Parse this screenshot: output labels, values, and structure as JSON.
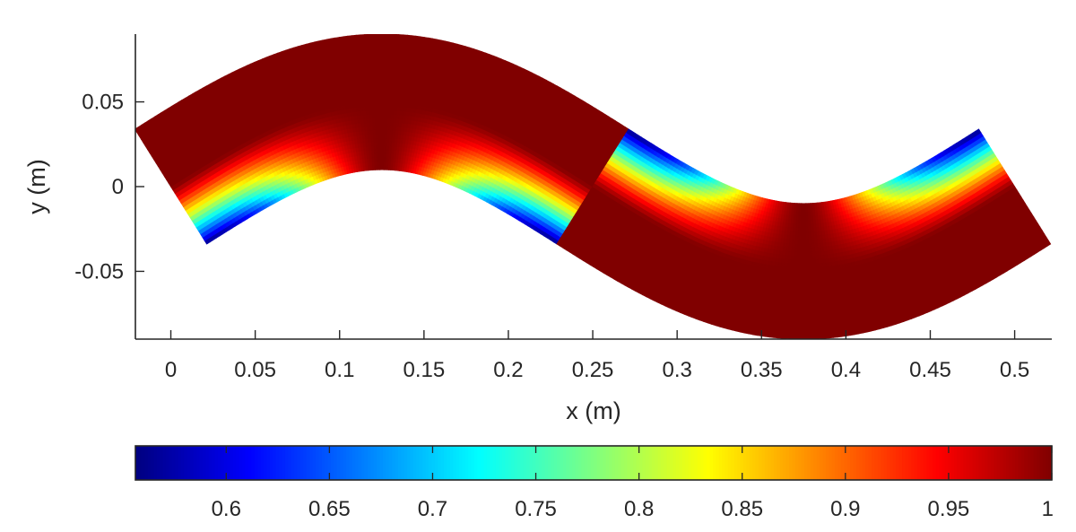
{
  "chart_data": {
    "type": "heatmap",
    "title": "",
    "xlabel": "x (m)",
    "ylabel": "y (m)",
    "xlim": [
      -0.021,
      0.522
    ],
    "ylim": [
      -0.09,
      0.09
    ],
    "xticks": [
      0,
      0.05,
      0.1,
      0.15,
      0.2,
      0.25,
      0.3,
      0.35,
      0.4,
      0.45,
      0.5
    ],
    "xtick_labels": [
      "0",
      "0.05",
      "0.1",
      "0.15",
      "0.2",
      "0.25",
      "0.3",
      "0.35",
      "0.4",
      "0.45",
      "0.5"
    ],
    "yticks": [
      0.05,
      0,
      -0.05
    ],
    "ytick_labels": [
      "0.05",
      "0",
      "-0.05"
    ],
    "colormap": "jet",
    "colorbar": {
      "orientation": "horizontal",
      "location": "below",
      "clim": [
        0.556,
        1.0
      ],
      "ticks": [
        0.6,
        0.65,
        0.7,
        0.75,
        0.8,
        0.85,
        0.9,
        0.95,
        1
      ],
      "tick_labels": [
        "0.6",
        "0.65",
        "0.7",
        "0.75",
        "0.8",
        "0.85",
        "0.9",
        "0.95",
        "1"
      ]
    },
    "field": {
      "description": "Sinusoidal curved strip y = A·sin(2πx/λ) with band half-width w; color varies across the strip",
      "centerline_amplitude": 0.05,
      "wavelength": 0.5,
      "x_range": [
        0,
        0.5
      ],
      "half_width": 0.04,
      "value_min": 0.556,
      "value_max": 1.0
    }
  }
}
